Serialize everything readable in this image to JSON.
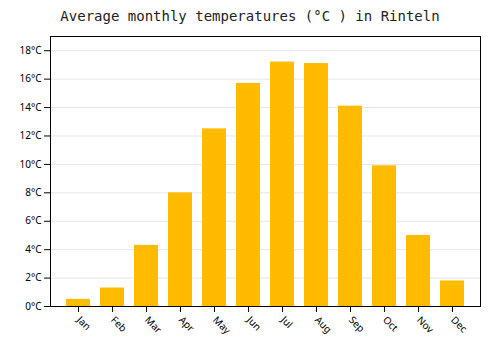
{
  "chart_data": {
    "type": "bar",
    "title": "Average monthly temperatures (°C ) in Rinteln",
    "categories": [
      "Jan",
      "Feb",
      "Mar",
      "Apr",
      "May",
      "Jun",
      "Jul",
      "Aug",
      "Sep",
      "Oct",
      "Nov",
      "Dec"
    ],
    "values": [
      0.5,
      1.3,
      4.3,
      8.0,
      12.5,
      15.7,
      17.2,
      17.1,
      14.1,
      9.9,
      5.0,
      1.8
    ],
    "color": "#FFBB00",
    "ylim": [
      0,
      19
    ],
    "yticks": [
      {
        "value": 0,
        "label": "0°C"
      },
      {
        "value": 2,
        "label": "2°C"
      },
      {
        "value": 4,
        "label": "4°C"
      },
      {
        "value": 6,
        "label": "6°C"
      },
      {
        "value": 8,
        "label": "8°C"
      },
      {
        "value": 10,
        "label": "10°C"
      },
      {
        "value": 12,
        "label": "12°C"
      },
      {
        "value": 14,
        "label": "14°C"
      },
      {
        "value": 16,
        "label": "16°C"
      },
      {
        "value": 18,
        "label": "18°C"
      }
    ],
    "grid": true
  }
}
